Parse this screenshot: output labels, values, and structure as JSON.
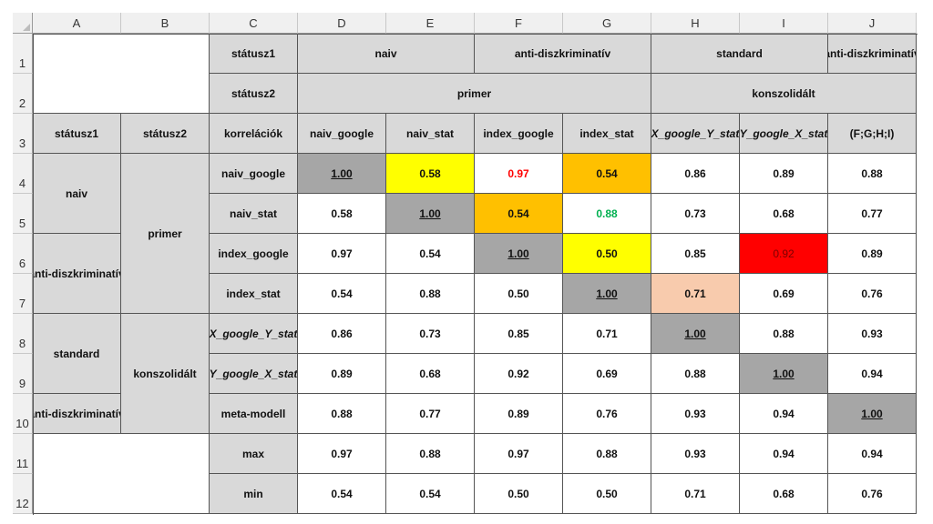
{
  "colors": {
    "header_bg": "#d9d9d9",
    "diagonal_gray": "#a6a6a6",
    "yellow": "#ffff00",
    "orange": "#ffc000",
    "peach": "#f8cbad",
    "red": "#ff0000",
    "text_red": "#ff0000",
    "text_green": "#00b050"
  },
  "col_headers": [
    "A",
    "B",
    "C",
    "D",
    "E",
    "F",
    "G",
    "H",
    "I",
    "J"
  ],
  "row_headers": [
    "1",
    "2",
    "3",
    "4",
    "5",
    "6",
    "7",
    "8",
    "9",
    "10",
    "11",
    "12"
  ],
  "header": {
    "c1": "státusz1",
    "c2": "státusz2",
    "naiv": "naiv",
    "anti1": "anti-diszkriminatív",
    "standard": "standard",
    "anti2": "anti-diszkriminatív",
    "primer": "primer",
    "konszolidalt": "konszolidált",
    "a3": "státusz1",
    "b3": "státusz2",
    "c3": "korrelációk",
    "d3": "naiv_google",
    "e3": "naiv_stat",
    "f3": "index_google",
    "g3": "index_stat",
    "h3": "X_google_Y_stat",
    "i3": "Y_google_X_stat",
    "j3": "(F;G;H;I)"
  },
  "groups": {
    "naiv": "naiv",
    "anti": "anti-diszkriminatív",
    "standard": "standard",
    "anti2": "anti-diszkriminatív",
    "primer": "primer",
    "konszolidalt": "konszolidált"
  },
  "rows": [
    {
      "label": "naiv_google",
      "values": [
        "1.00",
        "0.58",
        "0.97",
        "0.54",
        "0.86",
        "0.89",
        "0.88"
      ]
    },
    {
      "label": "naiv_stat",
      "values": [
        "0.58",
        "1.00",
        "0.54",
        "0.88",
        "0.73",
        "0.68",
        "0.77"
      ]
    },
    {
      "label": "index_google",
      "values": [
        "0.97",
        "0.54",
        "1.00",
        "0.50",
        "0.85",
        "0.92",
        "0.89"
      ]
    },
    {
      "label": "index_stat",
      "values": [
        "0.54",
        "0.88",
        "0.50",
        "1.00",
        "0.71",
        "0.69",
        "0.76"
      ]
    },
    {
      "label": "X_google_Y_stat",
      "values": [
        "0.86",
        "0.73",
        "0.85",
        "0.71",
        "1.00",
        "0.88",
        "0.93"
      ]
    },
    {
      "label": "Y_google_X_stat",
      "values": [
        "0.89",
        "0.68",
        "0.92",
        "0.69",
        "0.88",
        "1.00",
        "0.94"
      ]
    },
    {
      "label": "meta-modell",
      "values": [
        "0.88",
        "0.77",
        "0.89",
        "0.76",
        "0.93",
        "0.94",
        "1.00"
      ]
    },
    {
      "label": "max",
      "values": [
        "0.97",
        "0.88",
        "0.97",
        "0.88",
        "0.93",
        "0.94",
        "0.94"
      ]
    },
    {
      "label": "min",
      "values": [
        "0.54",
        "0.54",
        "0.50",
        "0.50",
        "0.71",
        "0.68",
        "0.76"
      ]
    }
  ]
}
